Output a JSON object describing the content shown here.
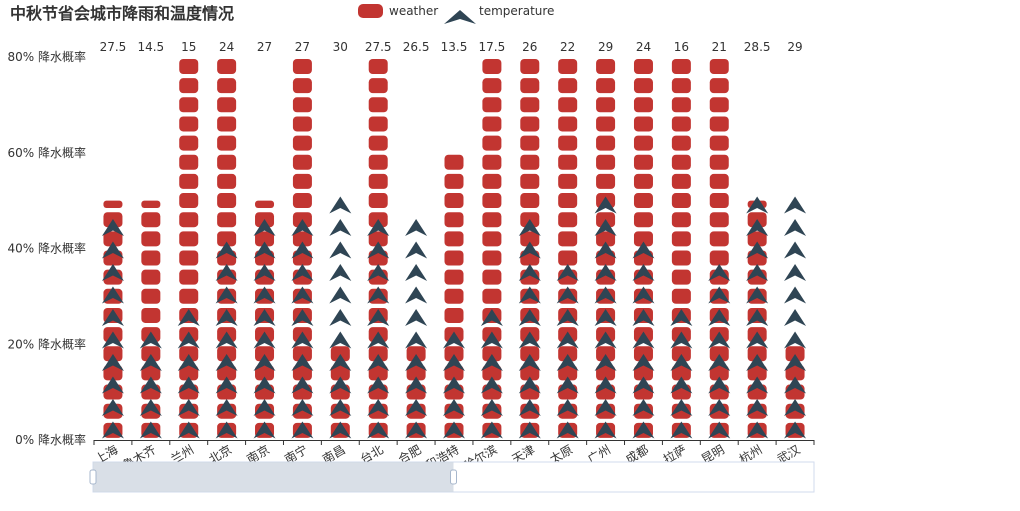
{
  "chart_data": {
    "type": "bar",
    "title": "中秋节省会城市降雨和温度情况",
    "categories": [
      "上海",
      "乌鲁木齐",
      "兰州",
      "北京",
      "南京",
      "南宁",
      "南昌",
      "台北",
      "合肥",
      "呼和浩特",
      "哈尔滨",
      "天津",
      "太原",
      "广州",
      "成都",
      "拉萨",
      "昆明",
      "杭州",
      "武汉"
    ],
    "series": [
      {
        "name": "weather",
        "shape": "rounded-square",
        "color": "#c23531",
        "values": [
          50,
          50,
          80,
          80,
          50,
          80,
          20,
          80,
          20,
          60,
          80,
          80,
          80,
          80,
          80,
          80,
          80,
          50,
          20
        ]
      },
      {
        "name": "temperature",
        "shape": "arrow",
        "color": "#2f4554",
        "values": [
          27.5,
          14.5,
          15,
          24,
          27,
          27,
          30,
          27.5,
          26.5,
          13.5,
          17.5,
          26,
          22,
          29,
          24,
          16,
          21,
          28.5,
          29
        ]
      }
    ],
    "value_labels": [
      "27.5",
      "14.5",
      "15",
      "24",
      "27",
      "27",
      "30",
      "27.5",
      "26.5",
      "13.5",
      "17.5",
      "26",
      "22",
      "29",
      "24",
      "16",
      "21",
      "28.5",
      "29"
    ],
    "y_ticks": [
      "0% 降水概率",
      "20% 降水概率",
      "40% 降水概率",
      "60% 降水概率",
      "80% 降水概率"
    ],
    "y_tick_values": [
      0,
      20,
      40,
      60,
      80
    ],
    "ylim": [
      0,
      80
    ],
    "temperature_ylim": [
      0,
      44
    ],
    "legend_position": "top-center",
    "grid": false,
    "datazoom_range": [
      0,
      50
    ]
  }
}
